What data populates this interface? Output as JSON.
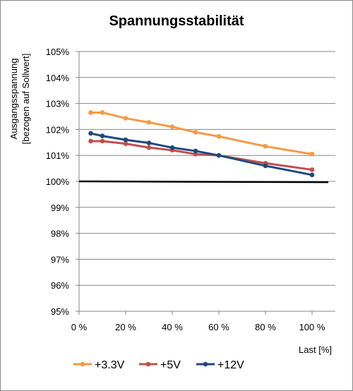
{
  "chart_data": {
    "type": "line",
    "title": "Spannungsstabilität",
    "xlabel": "Last [%]",
    "ylabel_line1": "Ausgangsspannung",
    "ylabel_line2": "[bezogen auf Sollwert]",
    "x_ticks": [
      "0 %",
      "20 %",
      "40 %",
      "60 %",
      "80 %",
      "100 %"
    ],
    "y_ticks": [
      "95%",
      "96%",
      "97%",
      "98%",
      "99%",
      "100%",
      "101%",
      "102%",
      "103%",
      "104%",
      "105%"
    ],
    "xlim": [
      0,
      110
    ],
    "ylim": [
      95,
      105
    ],
    "grid": "horizontal",
    "legend_position": "bottom",
    "reference_line": {
      "y": 100,
      "x_from": 0,
      "x_to": 107,
      "y_end": 99.97,
      "color": "#000000"
    },
    "series": [
      {
        "name": "+3.3V",
        "color": "#f59a44",
        "x": [
          5,
          10,
          20,
          30,
          40,
          50,
          60,
          80,
          100
        ],
        "y": [
          102.65,
          102.65,
          102.43,
          102.27,
          102.1,
          101.89,
          101.73,
          101.35,
          101.05
        ]
      },
      {
        "name": "+5V",
        "color": "#c0504d",
        "x": [
          5,
          10,
          20,
          30,
          40,
          50,
          60,
          80,
          100
        ],
        "y": [
          101.55,
          101.55,
          101.45,
          101.3,
          101.2,
          101.05,
          101.0,
          100.7,
          100.45
        ]
      },
      {
        "name": "+12V",
        "color": "#1f497d",
        "x": [
          5,
          10,
          20,
          30,
          40,
          50,
          60,
          80,
          100
        ],
        "y": [
          101.85,
          101.75,
          101.6,
          101.48,
          101.3,
          101.17,
          101.0,
          100.6,
          100.25
        ]
      }
    ]
  }
}
